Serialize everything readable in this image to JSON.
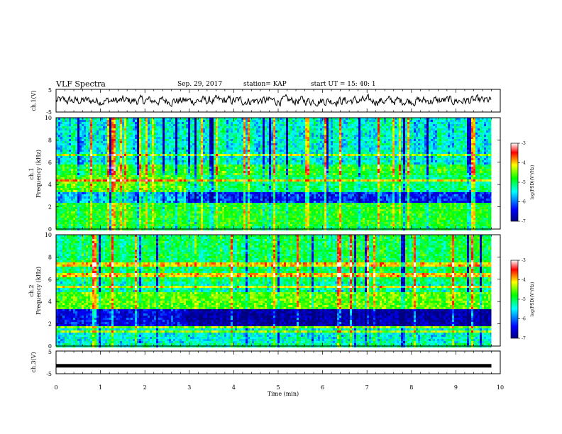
{
  "header": {
    "title": "VLF Spectra",
    "date": "Sep. 29, 2017",
    "station": "station= KAP",
    "start": "start  UT =   15: 40: 1"
  },
  "chart_data": [
    {
      "type": "line",
      "ylabel": "ch.1(V)",
      "ylim": [
        -5,
        5
      ],
      "yticks": [
        "5",
        "-5"
      ],
      "xlim": [
        0,
        10
      ],
      "note": "noisy waveform oscillating roughly between -3 and +3 V over 0-9.8 min"
    },
    {
      "type": "heatmap",
      "ylabel_line1": "ch.1",
      "ylabel_line2": "Frequency (kHz)",
      "ylim": [
        0,
        10
      ],
      "yticks": [
        "0",
        "2",
        "4",
        "6",
        "8",
        "10"
      ],
      "xlim": [
        0,
        9.8
      ],
      "colorbar": {
        "label": "log(PSD)(V²/Hz)",
        "range": [
          -7,
          -3
        ],
        "ticks": [
          "-3",
          "-4",
          "-5",
          "-6",
          "-7"
        ]
      }
    },
    {
      "type": "heatmap",
      "ylabel_line1": "ch.2",
      "ylabel_line2": "Frequency (kHz)",
      "ylim": [
        0,
        10
      ],
      "yticks": [
        "0",
        "2",
        "4",
        "6",
        "8",
        "10"
      ],
      "xlim": [
        0,
        9.8
      ],
      "colorbar": {
        "label": "log(PSD)(V²/Hz)",
        "range": [
          -7,
          -3
        ],
        "ticks": [
          "-3",
          "-4",
          "-5",
          "-6",
          "-7"
        ]
      }
    },
    {
      "type": "line",
      "ylabel": "ch.3(V)",
      "ylim": [
        -5,
        5
      ],
      "yticks": [
        "5",
        "-5"
      ],
      "xlim": [
        0,
        10
      ],
      "note": "flat thick line at approximately -1.5 V across 0-9.8 min"
    }
  ],
  "xaxis": {
    "label": "Time (min)",
    "ticks": [
      "0",
      "1",
      "2",
      "3",
      "4",
      "5",
      "6",
      "7",
      "8",
      "9",
      "10"
    ]
  },
  "colors": {
    "line": "#000000",
    "colormap": [
      "#00007f",
      "#0000ff",
      "#00ffff",
      "#00ff00",
      "#ffff00",
      "#ff0000",
      "#ffffff"
    ]
  }
}
